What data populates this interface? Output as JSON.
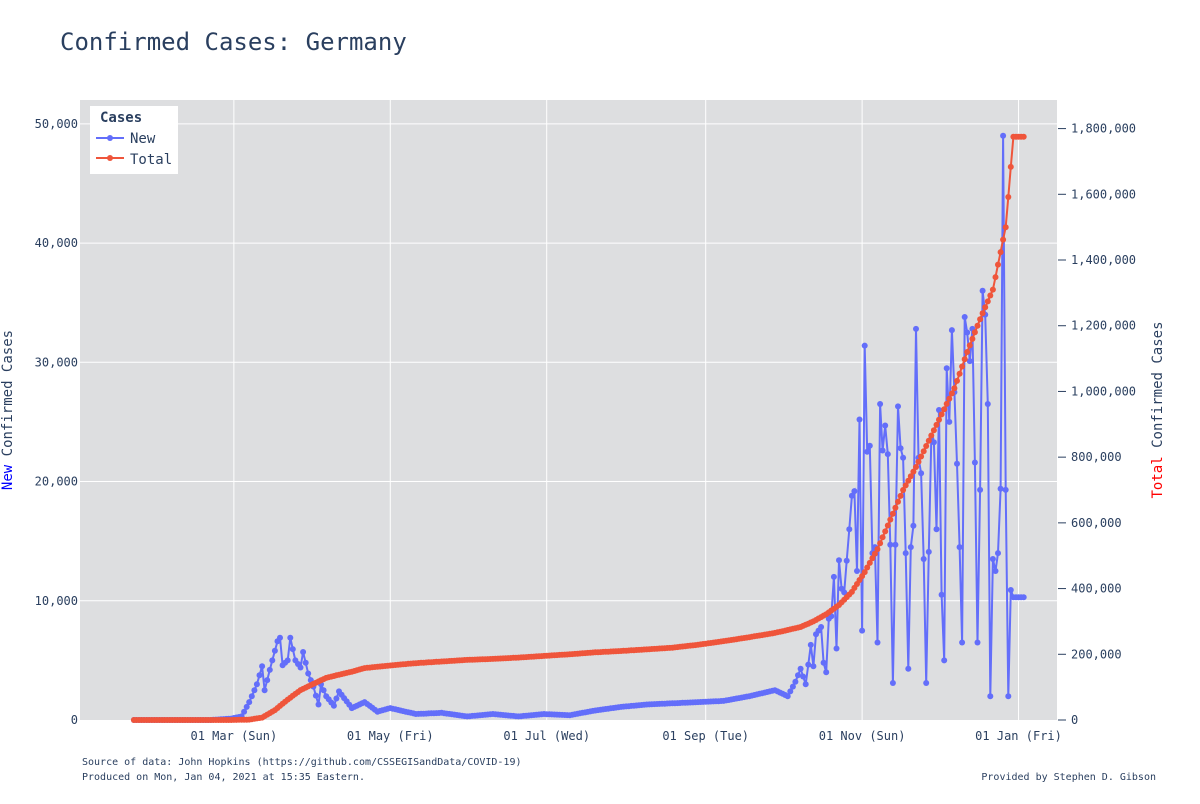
{
  "chart_data": {
    "type": "line",
    "title": "Confirmed Cases: Germany",
    "x_start_date": "2020-01-22",
    "x_end_date": "2021-01-03",
    "x_range": [
      "2020-01-01",
      "2021-01-16"
    ],
    "x_ticks": [
      "01 Mar (Sun)",
      "01 May (Fri)",
      "01 Jul (Wed)",
      "01 Sep (Tue)",
      "01 Nov (Sun)",
      "01 Jan (Fri)"
    ],
    "x_tick_dates": [
      "2020-03-01",
      "2020-05-01",
      "2020-07-01",
      "2020-09-01",
      "2020-11-01",
      "2021-01-01"
    ],
    "y_left_label_colored": "New",
    "y_left_label_rest": " Confirmed Cases",
    "y_left_label_color": "#0000ff",
    "y_right_label_colored": "Total",
    "y_right_label_rest": " Confirmed Cases",
    "y_right_label_color": "#ff0000",
    "y_left_range": [
      0,
      52000
    ],
    "y_left_ticks": [
      "0",
      "10,000",
      "20,000",
      "30,000",
      "40,000",
      "50,000"
    ],
    "y_left_tick_values": [
      0,
      10000,
      20000,
      30000,
      40000,
      50000
    ],
    "y_right_range": [
      0,
      1887000
    ],
    "y_right_ticks": [
      "0",
      "200,000",
      "400,000",
      "600,000",
      "800,000",
      "1,000,000",
      "1,200,000",
      "1,400,000",
      "1,600,000",
      "1,800,000"
    ],
    "y_right_tick_values": [
      0,
      200000,
      400000,
      600000,
      800000,
      1000000,
      1200000,
      1400000,
      1600000,
      1800000
    ],
    "grid": true,
    "legend": {
      "title": "Cases",
      "placement": "top-left"
    },
    "series": [
      {
        "name": "New",
        "axis": "left",
        "color": "#636efa",
        "anchors": [
          [
            0,
            0
          ],
          [
            30,
            0
          ],
          [
            38,
            120
          ],
          [
            42,
            300
          ],
          [
            45,
            1500
          ],
          [
            48,
            3000
          ],
          [
            50,
            4500
          ],
          [
            51,
            2500
          ],
          [
            53,
            4200
          ],
          [
            56,
            6600
          ],
          [
            57,
            6900
          ],
          [
            58,
            4600
          ],
          [
            60,
            5000
          ],
          [
            61,
            6900
          ],
          [
            63,
            5000
          ],
          [
            65,
            4400
          ],
          [
            66,
            5700
          ],
          [
            68,
            3900
          ],
          [
            70,
            2800
          ],
          [
            72,
            1300
          ],
          [
            73,
            3000
          ],
          [
            75,
            2000
          ],
          [
            78,
            1200
          ],
          [
            80,
            2400
          ],
          [
            85,
            1000
          ],
          [
            90,
            1500
          ],
          [
            95,
            700
          ],
          [
            100,
            1000
          ],
          [
            110,
            500
          ],
          [
            120,
            600
          ],
          [
            130,
            300
          ],
          [
            140,
            500
          ],
          [
            150,
            300
          ],
          [
            160,
            500
          ],
          [
            170,
            400
          ],
          [
            180,
            800
          ],
          [
            190,
            1100
          ],
          [
            200,
            1300
          ],
          [
            210,
            1400
          ],
          [
            220,
            1500
          ],
          [
            230,
            1600
          ],
          [
            240,
            2000
          ],
          [
            250,
            2500
          ],
          [
            255,
            2000
          ],
          [
            258,
            3200
          ],
          [
            260,
            4300
          ],
          [
            262,
            3000
          ],
          [
            264,
            6300
          ],
          [
            265,
            4500
          ],
          [
            266,
            7200
          ],
          [
            268,
            7800
          ],
          [
            269,
            4800
          ],
          [
            270,
            4000
          ],
          [
            271,
            8500
          ],
          [
            272,
            8700
          ],
          [
            273,
            12000
          ],
          [
            274,
            6000
          ],
          [
            275,
            13400
          ],
          [
            276,
            11000
          ],
          [
            277,
            10700
          ],
          [
            279,
            16000
          ],
          [
            280,
            18800
          ],
          [
            281,
            19200
          ],
          [
            282,
            12500
          ],
          [
            283,
            25200
          ],
          [
            284,
            7500
          ],
          [
            285,
            31400
          ],
          [
            286,
            22500
          ],
          [
            287,
            23000
          ],
          [
            288,
            14000
          ],
          [
            289,
            14500
          ],
          [
            290,
            6500
          ],
          [
            291,
            26500
          ],
          [
            292,
            22600
          ],
          [
            293,
            24700
          ],
          [
            294,
            22300
          ],
          [
            295,
            14700
          ],
          [
            296,
            3100
          ],
          [
            297,
            14700
          ],
          [
            298,
            26300
          ],
          [
            299,
            22800
          ],
          [
            300,
            22000
          ],
          [
            301,
            14000
          ],
          [
            302,
            4300
          ],
          [
            303,
            14500
          ],
          [
            304,
            16300
          ],
          [
            305,
            32800
          ],
          [
            306,
            22000
          ],
          [
            307,
            20700
          ],
          [
            308,
            13500
          ],
          [
            309,
            3100
          ],
          [
            310,
            14100
          ],
          [
            311,
            23600
          ],
          [
            312,
            23300
          ],
          [
            313,
            16000
          ],
          [
            314,
            26000
          ],
          [
            315,
            10500
          ],
          [
            316,
            5000
          ],
          [
            317,
            29500
          ],
          [
            318,
            25000
          ],
          [
            319,
            32700
          ],
          [
            320,
            27500
          ],
          [
            321,
            21500
          ],
          [
            322,
            14500
          ],
          [
            323,
            6500
          ],
          [
            324,
            33800
          ],
          [
            325,
            32500
          ],
          [
            326,
            30100
          ],
          [
            327,
            32800
          ],
          [
            328,
            21600
          ],
          [
            329,
            6500
          ],
          [
            330,
            19300
          ],
          [
            331,
            36000
          ],
          [
            332,
            34000
          ],
          [
            333,
            26500
          ],
          [
            334,
            2000
          ],
          [
            335,
            13500
          ],
          [
            336,
            12500
          ],
          [
            337,
            14000
          ],
          [
            338,
            19400
          ],
          [
            339,
            49000
          ],
          [
            340,
            19300
          ],
          [
            341,
            2000
          ],
          [
            342,
            10900
          ],
          [
            343,
            10300
          ]
        ]
      },
      {
        "name": "Total",
        "axis": "right",
        "color": "#ef553b",
        "anchors": [
          [
            0,
            0
          ],
          [
            37,
            16
          ],
          [
            45,
            1100
          ],
          [
            50,
            7200
          ],
          [
            55,
            30000
          ],
          [
            60,
            62000
          ],
          [
            65,
            91000
          ],
          [
            70,
            110000
          ],
          [
            75,
            128000
          ],
          [
            80,
            138000
          ],
          [
            85,
            147000
          ],
          [
            90,
            158000
          ],
          [
            100,
            166000
          ],
          [
            110,
            173000
          ],
          [
            120,
            178000
          ],
          [
            130,
            183000
          ],
          [
            140,
            186000
          ],
          [
            150,
            190000
          ],
          [
            160,
            195000
          ],
          [
            170,
            200000
          ],
          [
            180,
            206000
          ],
          [
            190,
            210000
          ],
          [
            200,
            215000
          ],
          [
            210,
            220000
          ],
          [
            220,
            229000
          ],
          [
            230,
            240000
          ],
          [
            240,
            252000
          ],
          [
            250,
            265000
          ],
          [
            260,
            283000
          ],
          [
            265,
            300000
          ],
          [
            270,
            322000
          ],
          [
            275,
            350000
          ],
          [
            280,
            390000
          ],
          [
            285,
            450000
          ],
          [
            290,
            520000
          ],
          [
            295,
            610000
          ],
          [
            300,
            700000
          ],
          [
            305,
            770000
          ],
          [
            310,
            850000
          ],
          [
            315,
            930000
          ],
          [
            320,
            1010000
          ],
          [
            325,
            1120000
          ],
          [
            330,
            1220000
          ],
          [
            335,
            1310000
          ],
          [
            340,
            1500000
          ],
          [
            343,
            1775000
          ]
        ]
      }
    ]
  },
  "footer": {
    "source": "Source of data: John Hopkins (https://github.com/CSSEGISandData/COVID-19)",
    "produced": "Produced on Mon, Jan 04, 2021 at 15:35 Eastern.",
    "provided": "Provided by Stephen D. Gibson"
  },
  "colors": {
    "plot_bg": "#dddee0",
    "grid": "#ffffff",
    "text": "#2a3f5f"
  }
}
